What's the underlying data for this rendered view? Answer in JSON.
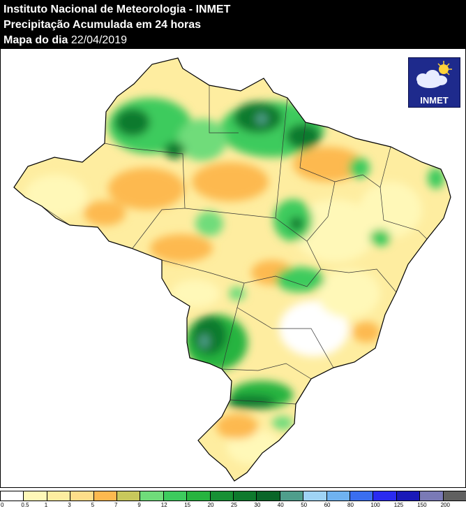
{
  "header": {
    "line1": "Instituto Nacional de Meteorologia - INMET",
    "line2": "Precipitação Acumulada em 24 horas",
    "line3_label": "Mapa do dia",
    "line3_date": "22/04/2019"
  },
  "logo": {
    "text": "INMET",
    "icon": "sun-cloud-icon"
  },
  "legend": {
    "ticks": [
      "0",
      "0.5",
      "1",
      "3",
      "5",
      "7",
      "9",
      "12",
      "15",
      "20",
      "25",
      "30",
      "40",
      "50",
      "60",
      "80",
      "100",
      "125",
      "150",
      "200"
    ],
    "colors": [
      "#ffffff",
      "#fff8b8",
      "#feeda0",
      "#fede8a",
      "#fdb94f",
      "#c8c85c",
      "#6fdc7a",
      "#3dcb5d",
      "#27b43f",
      "#179034",
      "#0e7a2d",
      "#0a6629",
      "#4f9e8c",
      "#9fd3f5",
      "#6fb2f0",
      "#3a6ef0",
      "#2a2bf0",
      "#1a1ab8",
      "#7a7ab6",
      "#606060"
    ]
  },
  "map": {
    "region": "Brasil",
    "colors": {
      "very_light": "#fff8b8",
      "light": "#feeda0",
      "mid_yellow": "#fede8a",
      "orange": "#fdb94f",
      "light_green": "#6fdc7a",
      "green": "#27b43f",
      "dark_green": "#0e7a2d",
      "teal": "#4f9e8c"
    }
  }
}
